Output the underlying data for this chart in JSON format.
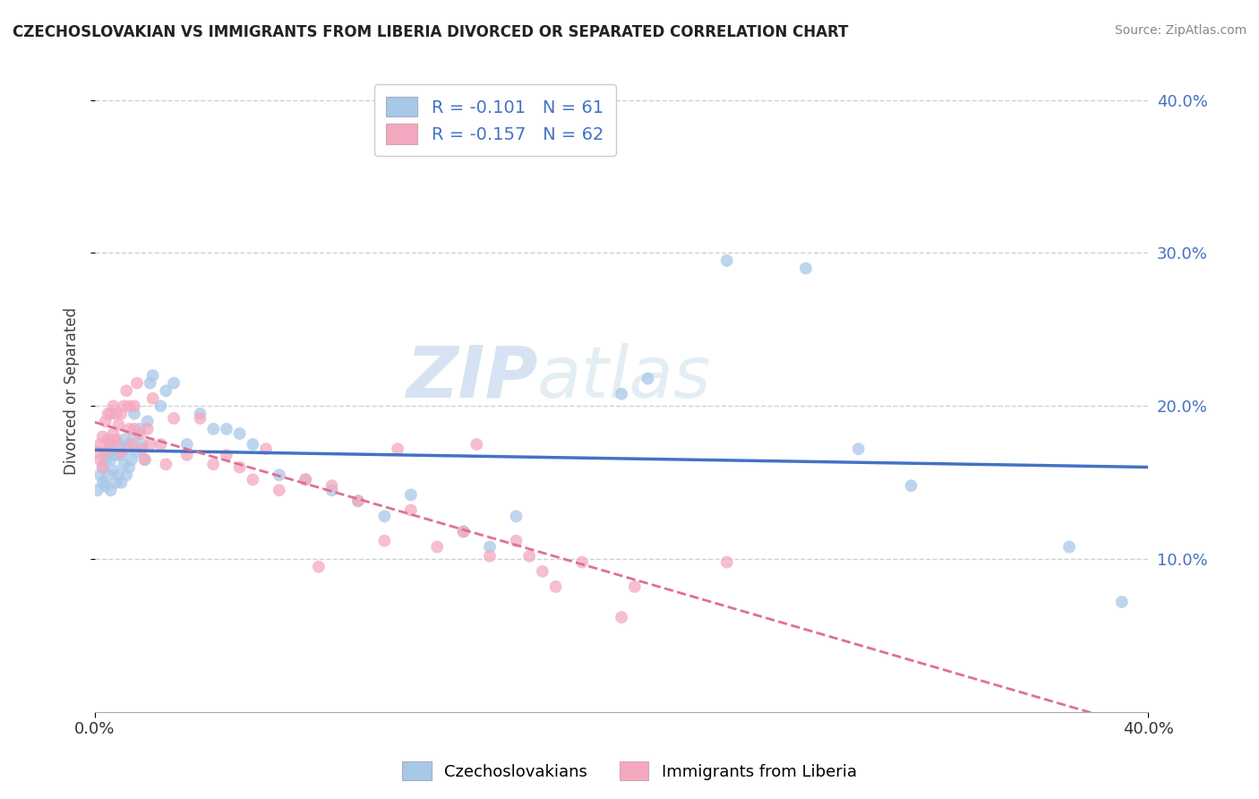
{
  "title": "CZECHOSLOVAKIAN VS IMMIGRANTS FROM LIBERIA DIVORCED OR SEPARATED CORRELATION CHART",
  "source": "Source: ZipAtlas.com",
  "ylabel": "Divorced or Separated",
  "xlim": [
    0.0,
    0.4
  ],
  "ylim": [
    0.0,
    0.42
  ],
  "x_ticks": [
    0.0,
    0.4
  ],
  "x_tick_labels": [
    "0.0%",
    "40.0%"
  ],
  "y_ticks_right": [
    0.1,
    0.2,
    0.3,
    0.4
  ],
  "y_tick_labels_right": [
    "10.0%",
    "20.0%",
    "30.0%",
    "40.0%"
  ],
  "blue_R": -0.101,
  "blue_N": 61,
  "pink_R": -0.157,
  "pink_N": 62,
  "blue_color": "#a8c8e8",
  "pink_color": "#f4a8c0",
  "blue_line_color": "#4472c4",
  "pink_line_color": "#e07090",
  "legend_label_blue": "Czechoslovakians",
  "legend_label_pink": "Immigrants from Liberia",
  "watermark_zip": "ZIP",
  "watermark_atlas": "atlas",
  "background_color": "#ffffff",
  "grid_color": "#d0d0d0",
  "blue_scatter_x": [
    0.001,
    0.002,
    0.003,
    0.003,
    0.004,
    0.004,
    0.005,
    0.005,
    0.006,
    0.006,
    0.006,
    0.007,
    0.007,
    0.008,
    0.008,
    0.009,
    0.009,
    0.01,
    0.01,
    0.011,
    0.011,
    0.012,
    0.012,
    0.013,
    0.013,
    0.014,
    0.015,
    0.015,
    0.016,
    0.017,
    0.018,
    0.019,
    0.02,
    0.021,
    0.022,
    0.025,
    0.027,
    0.03,
    0.035,
    0.04,
    0.045,
    0.05,
    0.055,
    0.06,
    0.07,
    0.08,
    0.09,
    0.1,
    0.11,
    0.12,
    0.14,
    0.15,
    0.16,
    0.2,
    0.21,
    0.24,
    0.27,
    0.29,
    0.31,
    0.37,
    0.39
  ],
  "blue_scatter_y": [
    0.145,
    0.155,
    0.15,
    0.16,
    0.148,
    0.165,
    0.155,
    0.17,
    0.145,
    0.165,
    0.175,
    0.158,
    0.172,
    0.15,
    0.168,
    0.155,
    0.175,
    0.15,
    0.168,
    0.162,
    0.178,
    0.155,
    0.172,
    0.16,
    0.175,
    0.165,
    0.18,
    0.195,
    0.17,
    0.185,
    0.175,
    0.165,
    0.19,
    0.215,
    0.22,
    0.2,
    0.21,
    0.215,
    0.175,
    0.195,
    0.185,
    0.185,
    0.182,
    0.175,
    0.155,
    0.152,
    0.145,
    0.138,
    0.128,
    0.142,
    0.118,
    0.108,
    0.128,
    0.208,
    0.218,
    0.295,
    0.29,
    0.172,
    0.148,
    0.108,
    0.072
  ],
  "pink_scatter_x": [
    0.001,
    0.002,
    0.002,
    0.003,
    0.003,
    0.004,
    0.004,
    0.005,
    0.005,
    0.006,
    0.006,
    0.007,
    0.007,
    0.008,
    0.008,
    0.009,
    0.01,
    0.01,
    0.011,
    0.012,
    0.013,
    0.013,
    0.014,
    0.015,
    0.015,
    0.016,
    0.017,
    0.018,
    0.019,
    0.02,
    0.021,
    0.022,
    0.025,
    0.027,
    0.03,
    0.035,
    0.04,
    0.045,
    0.05,
    0.055,
    0.06,
    0.065,
    0.07,
    0.08,
    0.085,
    0.09,
    0.1,
    0.11,
    0.115,
    0.12,
    0.13,
    0.14,
    0.145,
    0.15,
    0.16,
    0.165,
    0.17,
    0.175,
    0.185,
    0.2,
    0.205,
    0.24
  ],
  "pink_scatter_y": [
    0.17,
    0.165,
    0.175,
    0.16,
    0.18,
    0.17,
    0.19,
    0.178,
    0.195,
    0.175,
    0.195,
    0.182,
    0.2,
    0.178,
    0.195,
    0.188,
    0.17,
    0.195,
    0.2,
    0.21,
    0.185,
    0.2,
    0.175,
    0.185,
    0.2,
    0.215,
    0.182,
    0.172,
    0.165,
    0.185,
    0.175,
    0.205,
    0.175,
    0.162,
    0.192,
    0.168,
    0.192,
    0.162,
    0.168,
    0.16,
    0.152,
    0.172,
    0.145,
    0.152,
    0.095,
    0.148,
    0.138,
    0.112,
    0.172,
    0.132,
    0.108,
    0.118,
    0.175,
    0.102,
    0.112,
    0.102,
    0.092,
    0.082,
    0.098,
    0.062,
    0.082,
    0.098
  ]
}
